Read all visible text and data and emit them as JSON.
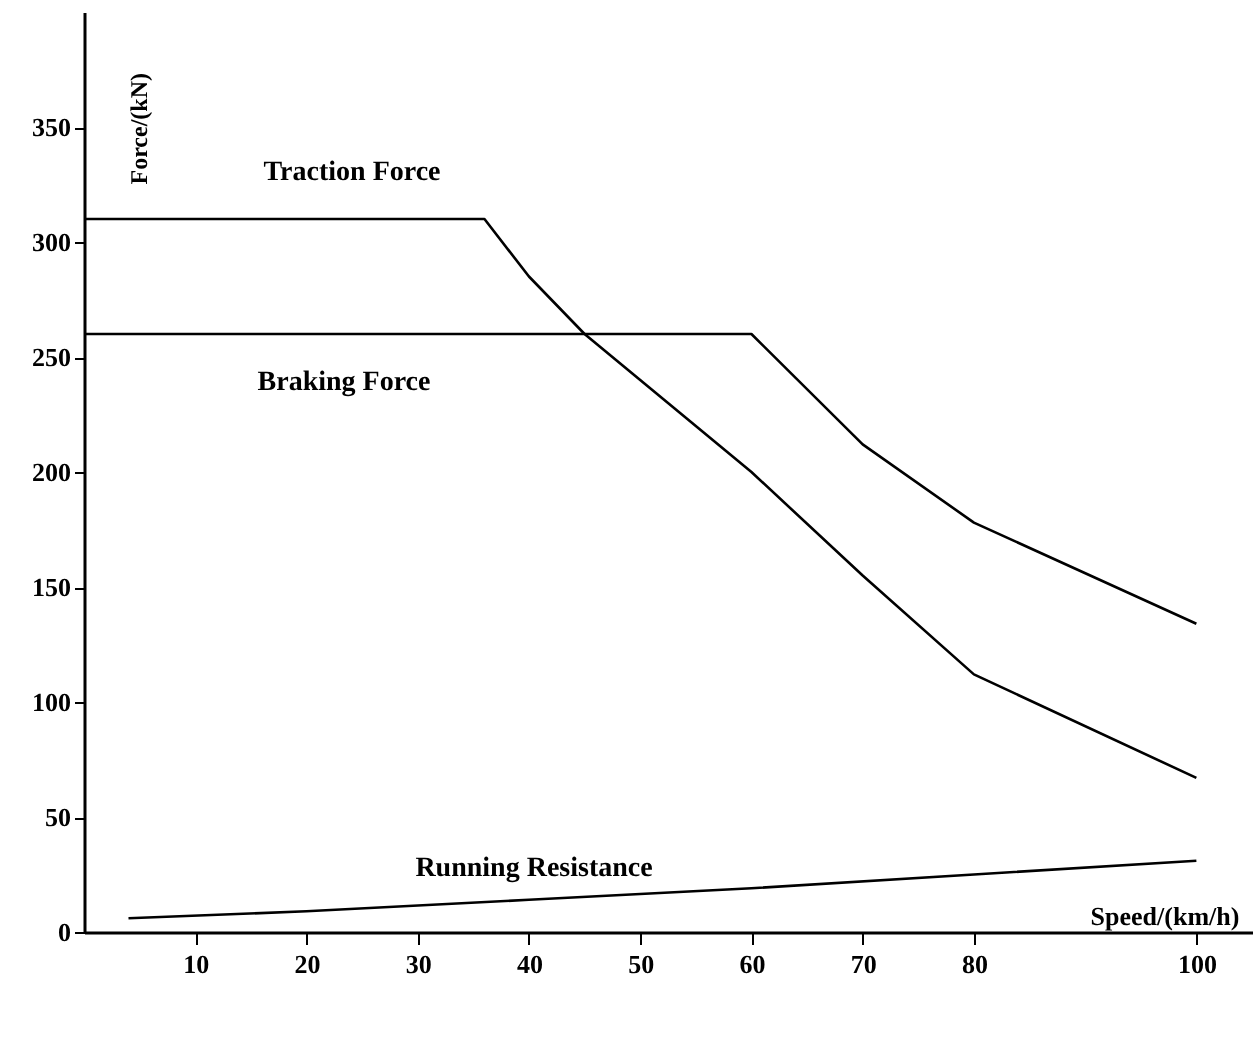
{
  "chart_data": {
    "type": "line",
    "xlabel": "Speed/(km/h)",
    "ylabel": "Force/(kN)",
    "xlim": [
      0,
      105
    ],
    "ylim": [
      0,
      400
    ],
    "xticks": [
      10,
      20,
      30,
      40,
      50,
      60,
      70,
      80,
      100
    ],
    "yticks": [
      0,
      50,
      100,
      150,
      200,
      250,
      300,
      350
    ],
    "grid": false,
    "marker": "none",
    "line_style": "solid",
    "series": [
      {
        "color": "#000000",
        "x": [
          0,
          36,
          40,
          45,
          50,
          60,
          70,
          80,
          100
        ],
        "values": [
          310,
          310,
          285,
          260,
          240,
          200,
          155,
          112,
          67
        ]
      },
      {
        "color": "#000000",
        "x": [
          0,
          60,
          70,
          80,
          100
        ],
        "values": [
          260,
          260,
          212,
          178,
          134
        ]
      },
      {
        "color": "#000000",
        "x": [
          4,
          20,
          40,
          60,
          80,
          100
        ],
        "values": [
          6,
          9,
          14,
          19,
          25,
          31
        ]
      }
    ],
    "annotations": [
      "Traction Force",
      "Braking Force",
      "Running Resistance"
    ]
  }
}
